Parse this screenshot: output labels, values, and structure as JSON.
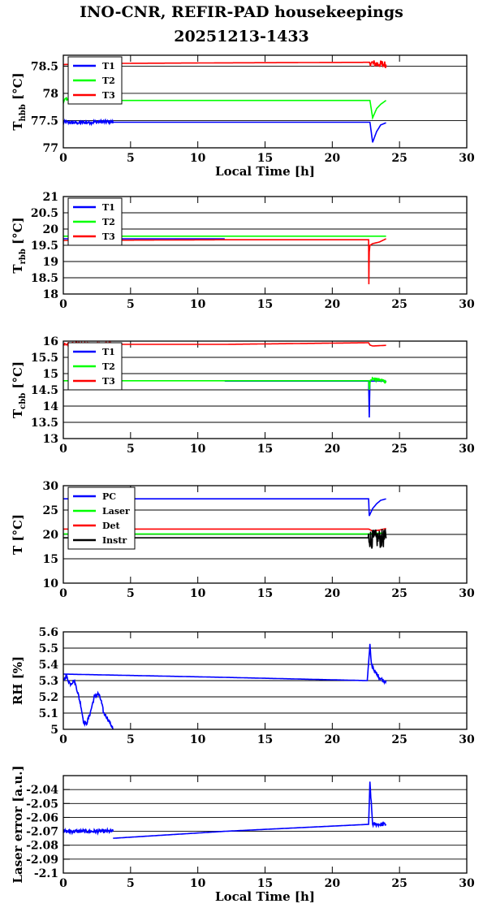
{
  "title": "INO-CNR, REFIR-PAD housekeepings",
  "subtitle": "20251213-1433",
  "colors": {
    "T1": "#0000ff",
    "T2": "#00ff00",
    "T3": "#ff0000",
    "Instr": "#000000"
  },
  "chart_data": [
    {
      "id": "hbb",
      "type": "line",
      "xlabel": "Local Time [h]",
      "ylabel_main": "T",
      "ylabel_sub": "hbb",
      "ylabel_unit": " [°C]",
      "xlim": [
        0,
        30
      ],
      "ylim": [
        77,
        78.7
      ],
      "yticks": [
        77,
        77.5,
        78,
        78.5
      ],
      "ytick_labels": [
        "77",
        "77.5",
        "78",
        "78.5"
      ],
      "xticks": [
        0,
        5,
        10,
        15,
        20,
        25,
        30
      ],
      "xtick_labels": [
        "0",
        "5",
        "10",
        "15",
        "20",
        "25",
        "30"
      ],
      "grid": true,
      "legend": "top-left",
      "series": [
        {
          "name": "T1",
          "color": "#0000ff",
          "x": [
            0,
            1,
            2,
            3,
            3.7,
            12,
            22.8,
            23,
            23.3,
            23.6,
            24
          ],
          "y": [
            77.47,
            77.46,
            77.47,
            77.48,
            77.47,
            77.47,
            77.47,
            77.1,
            77.3,
            77.42,
            77.46
          ],
          "noise": [
            0,
            3.7,
            0.02
          ]
        },
        {
          "name": "T2",
          "color": "#00ff00",
          "x": [
            0,
            3.7,
            12,
            22.8,
            23,
            23.3,
            23.6,
            24
          ],
          "y": [
            77.88,
            77.87,
            77.87,
            77.87,
            77.55,
            77.72,
            77.8,
            77.87
          ],
          "noise": [
            0,
            0.3,
            0.02
          ]
        },
        {
          "name": "T3",
          "color": "#ff0000",
          "x": [
            0,
            3.7,
            12,
            22.8,
            23,
            24
          ],
          "y": [
            78.53,
            78.55,
            78.56,
            78.57,
            78.55,
            78.53
          ],
          "noise": [
            22.8,
            24,
            0.04
          ]
        }
      ]
    },
    {
      "id": "rbb",
      "type": "line",
      "xlabel": "",
      "ylabel_main": "T",
      "ylabel_sub": "rbb",
      "ylabel_unit": " [°C]",
      "xlim": [
        0,
        30
      ],
      "ylim": [
        18,
        21
      ],
      "yticks": [
        18,
        18.5,
        19,
        19.5,
        20,
        20.5,
        21
      ],
      "ytick_labels": [
        "18",
        "18.5",
        "19",
        "19.5",
        "20",
        "20.5",
        "21"
      ],
      "xticks": [
        0,
        5,
        10,
        15,
        20,
        25,
        30
      ],
      "xtick_labels": [
        "0",
        "5",
        "10",
        "15",
        "20",
        "25",
        "30"
      ],
      "grid": true,
      "legend": "top-left",
      "series": [
        {
          "name": "T1",
          "color": "#0000ff",
          "x": [
            0,
            12
          ],
          "y": [
            19.7,
            19.7
          ],
          "noise": [
            0,
            0,
            0
          ]
        },
        {
          "name": "T2",
          "color": "#00ff00",
          "x": [
            0,
            12,
            22.7,
            23.5,
            24
          ],
          "y": [
            19.78,
            19.78,
            19.78,
            19.78,
            19.78
          ],
          "noise": [
            0,
            0,
            0
          ]
        },
        {
          "name": "T3",
          "color": "#ff0000",
          "x": [
            0,
            12,
            22.7,
            22.72,
            22.75,
            22.8,
            23,
            23.5,
            24
          ],
          "y": [
            19.65,
            19.67,
            19.67,
            18.3,
            19.3,
            19.5,
            19.55,
            19.6,
            19.7
          ],
          "noise": [
            0,
            0,
            0
          ]
        }
      ]
    },
    {
      "id": "cbb",
      "type": "line",
      "xlabel": "",
      "ylabel_main": "T",
      "ylabel_sub": "cbb",
      "ylabel_unit": " [°C]",
      "xlim": [
        0,
        30
      ],
      "ylim": [
        13,
        16
      ],
      "yticks": [
        13,
        13.5,
        14,
        14.5,
        15,
        15.5,
        16
      ],
      "ytick_labels": [
        "13",
        "13.5",
        "14",
        "14.5",
        "15",
        "15.5",
        "16"
      ],
      "xticks": [
        0,
        5,
        10,
        15,
        20,
        25,
        30
      ],
      "xtick_labels": [
        "0",
        "5",
        "10",
        "15",
        "20",
        "25",
        "30"
      ],
      "grid": true,
      "legend": "top-left",
      "series": [
        {
          "name": "T1",
          "color": "#0000ff",
          "x": [
            12,
            22.7,
            22.75,
            22.8,
            24
          ],
          "y": [
            14.77,
            14.77,
            13.65,
            14.77,
            14.77
          ],
          "noise": [
            0,
            0,
            0
          ]
        },
        {
          "name": "T2",
          "color": "#00ff00",
          "x": [
            0,
            12,
            22.7,
            22.75,
            22.85,
            23.5,
            24
          ],
          "y": [
            14.78,
            14.78,
            14.78,
            14.5,
            14.85,
            14.8,
            14.77
          ],
          "noise": [
            22.8,
            24,
            0.02
          ]
        },
        {
          "name": "T3",
          "color": "#ff0000",
          "x": [
            0,
            3.7,
            12,
            22.7,
            22.8,
            23,
            24
          ],
          "y": [
            15.9,
            15.9,
            15.9,
            15.95,
            15.88,
            15.85,
            15.87
          ],
          "noise": [
            0,
            3.7,
            0.02
          ]
        }
      ]
    },
    {
      "id": "temps",
      "type": "line",
      "xlabel": "",
      "ylabel": "T [°C]",
      "xlim": [
        0,
        30
      ],
      "ylim": [
        10,
        30
      ],
      "yticks": [
        10,
        15,
        20,
        25,
        30
      ],
      "ytick_labels": [
        "10",
        "15",
        "20",
        "25",
        "30"
      ],
      "xticks": [
        0,
        5,
        10,
        15,
        20,
        25,
        30
      ],
      "xtick_labels": [
        "0",
        "5",
        "10",
        "15",
        "20",
        "25",
        "30"
      ],
      "grid": true,
      "legend": "top-left",
      "series": [
        {
          "name": "PC",
          "color": "#0000ff",
          "x": [
            0,
            12,
            22.7,
            22.75,
            23,
            23.3,
            23.6,
            24
          ],
          "y": [
            27.3,
            27.3,
            27.3,
            23.8,
            25.3,
            26.3,
            27,
            27.3
          ],
          "noise": [
            0,
            0,
            0
          ]
        },
        {
          "name": "Laser",
          "color": "#00ff00",
          "x": [
            0,
            12,
            22.7,
            23,
            24
          ],
          "y": [
            20.1,
            20.1,
            20.1,
            20.2,
            20.3
          ],
          "noise": [
            0,
            0,
            0
          ]
        },
        {
          "name": "Det",
          "color": "#ff0000",
          "x": [
            0,
            12,
            22.7,
            23,
            23.5,
            24
          ],
          "y": [
            21.1,
            21.1,
            21.1,
            20.7,
            20.9,
            21.2
          ],
          "noise": [
            0,
            0,
            0
          ]
        },
        {
          "name": "Instr",
          "color": "#000000",
          "x": [
            0,
            12,
            22.7,
            23,
            23.5,
            24
          ],
          "y": [
            19.3,
            19.3,
            19.3,
            19.0,
            19.1,
            19.2
          ],
          "noise": [
            22.7,
            24,
            0.1
          ]
        }
      ]
    },
    {
      "id": "rh",
      "type": "line",
      "xlabel": "",
      "ylabel": "RH [%]",
      "xlim": [
        0,
        30
      ],
      "ylim": [
        5,
        5.6
      ],
      "yticks": [
        5,
        5.1,
        5.2,
        5.3,
        5.4,
        5.5,
        5.6
      ],
      "ytick_labels": [
        "5",
        "5.1",
        "5.2",
        "5.3",
        "5.4",
        "5.5",
        "5.6"
      ],
      "xticks": [
        0,
        5,
        10,
        15,
        20,
        25,
        30
      ],
      "xtick_labels": [
        "0",
        "5",
        "10",
        "15",
        "20",
        "25",
        "30"
      ],
      "grid": true,
      "legend": "none",
      "series": [
        {
          "name": "",
          "color": "#0000ff",
          "x": [
            0,
            0.2,
            0.5,
            0.8,
            1.0,
            1.3,
            1.5,
            1.7,
            2.0,
            2.3,
            2.6,
            2.8,
            3.0,
            3.2,
            3.4,
            3.6,
            3.7
          ],
          "y": [
            5.3,
            5.33,
            5.28,
            5.3,
            5.25,
            5.15,
            5.05,
            5.03,
            5.1,
            5.2,
            5.22,
            5.18,
            5.1,
            5.08,
            5.05,
            5.02,
            5.0
          ],
          "noise": [
            0,
            3.7,
            0.02
          ]
        },
        {
          "name": "",
          "color": "#0000ff",
          "x": [
            0,
            12,
            22.6,
            22.8,
            22.9,
            23.2,
            23.5,
            23.8,
            24
          ],
          "y": [
            5.34,
            5.32,
            5.3,
            5.52,
            5.4,
            5.35,
            5.32,
            5.3,
            5.3
          ],
          "noise": [
            22.8,
            24,
            0.02
          ]
        }
      ]
    },
    {
      "id": "laser",
      "type": "line",
      "xlabel": "Local Time [h]",
      "ylabel": "Laser error [a.u.]",
      "xlim": [
        0,
        30
      ],
      "ylim": [
        -2.1,
        -2.03
      ],
      "yticks": [
        -2.1,
        -2.09,
        -2.08,
        -2.07,
        -2.06,
        -2.05,
        -2.04
      ],
      "ytick_labels": [
        "-2.1",
        "-2.09",
        "-2.08",
        "-2.07",
        "-2.06",
        "-2.05",
        "-2.04"
      ],
      "xticks": [
        0,
        5,
        10,
        15,
        20,
        25,
        30
      ],
      "xtick_labels": [
        "0",
        "5",
        "10",
        "15",
        "20",
        "25",
        "30"
      ],
      "grid": true,
      "legend": "none",
      "series": [
        {
          "name": "",
          "color": "#0000ff",
          "x": [
            0,
            0.5,
            1,
            1.5,
            2,
            2.5,
            3,
            3.7
          ],
          "y": [
            -2.07,
            -2.07,
            -2.07,
            -2.07,
            -2.07,
            -2.07,
            -2.07,
            -2.07
          ],
          "noise": [
            0,
            3.7,
            0.02
          ]
        },
        {
          "name": "",
          "color": "#0000ff",
          "x": [
            3.7,
            12,
            22.7,
            22.8,
            23,
            23.5,
            24
          ],
          "y": [
            -2.075,
            -2.07,
            -2.065,
            -2.035,
            -2.065,
            -2.065,
            -2.065
          ],
          "noise": [
            22.8,
            24,
            0.02
          ]
        }
      ]
    }
  ]
}
